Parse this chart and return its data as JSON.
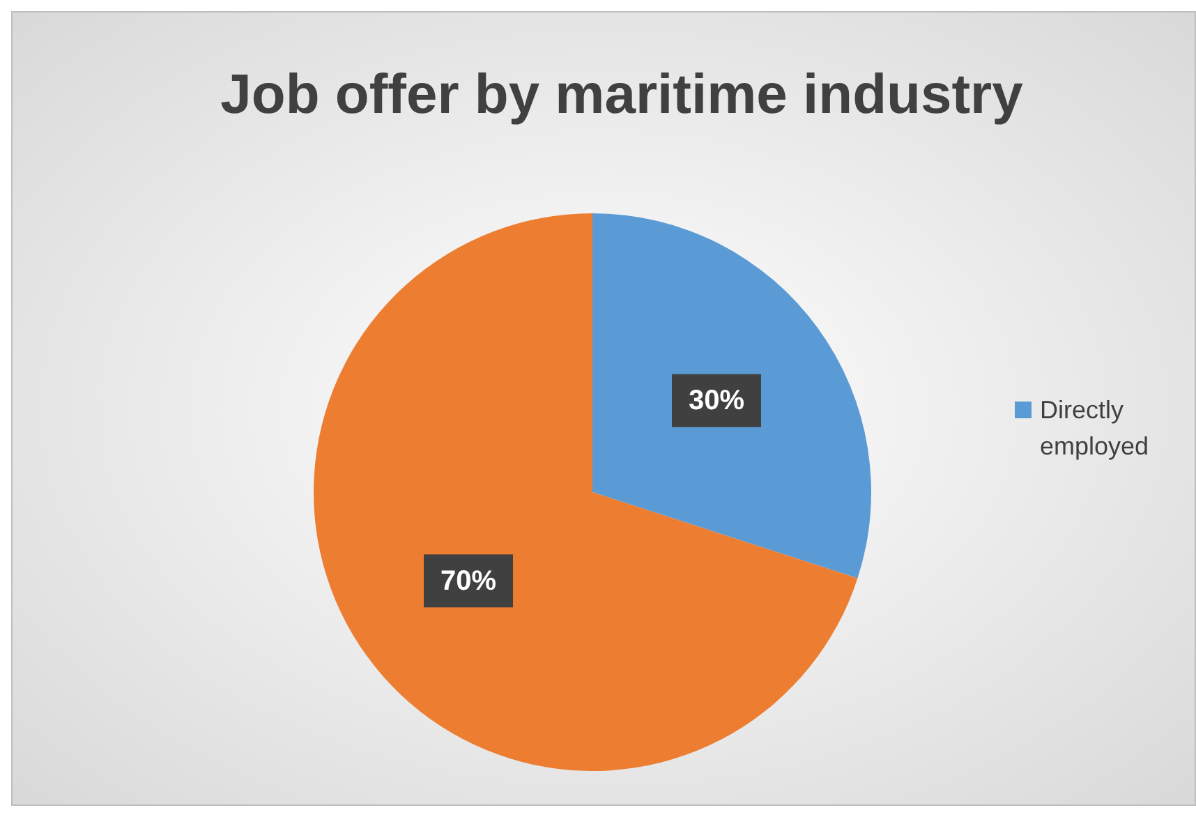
{
  "chart_data": {
    "type": "pie",
    "title": "Job offer by maritime industry",
    "categories": [
      "Directly employed",
      null
    ],
    "values": [
      30,
      70
    ],
    "value_labels": [
      "30%",
      "70%"
    ],
    "colors": [
      "#5b9bd5",
      "#ed7d31"
    ],
    "legend": "right"
  }
}
